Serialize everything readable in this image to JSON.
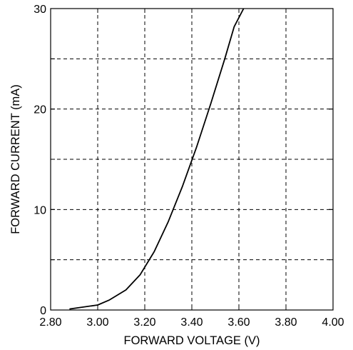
{
  "chart_data": {
    "type": "line",
    "title": "",
    "xlabel": "FORWARD VOLTAGE (V)",
    "ylabel": "FORWARD CURRENT (mA)",
    "xlim": [
      2.8,
      4.0
    ],
    "ylim": [
      0,
      30
    ],
    "x_tick_labels": [
      "2.80",
      "3.00",
      "3.20",
      "3.40",
      "3.60",
      "3.80",
      "4.00"
    ],
    "y_tick_labels": [
      "0",
      "10",
      "20",
      "30"
    ],
    "x_grid_values": [
      3.0,
      3.2,
      3.4,
      3.6,
      3.8
    ],
    "y_grid_values": [
      5,
      10,
      15,
      20,
      25
    ],
    "grid": true,
    "grid_style": "dashed",
    "series": [
      {
        "x": [
          2.88,
          3.0,
          3.05,
          3.12,
          3.18,
          3.24,
          3.3,
          3.36,
          3.42,
          3.48,
          3.54,
          3.58,
          3.62
        ],
        "values": [
          0.1,
          0.5,
          1.0,
          2.0,
          3.5,
          5.8,
          8.8,
          12.3,
          16.2,
          20.5,
          25.0,
          28.2,
          30.0
        ]
      }
    ],
    "line_color": "#000000"
  }
}
